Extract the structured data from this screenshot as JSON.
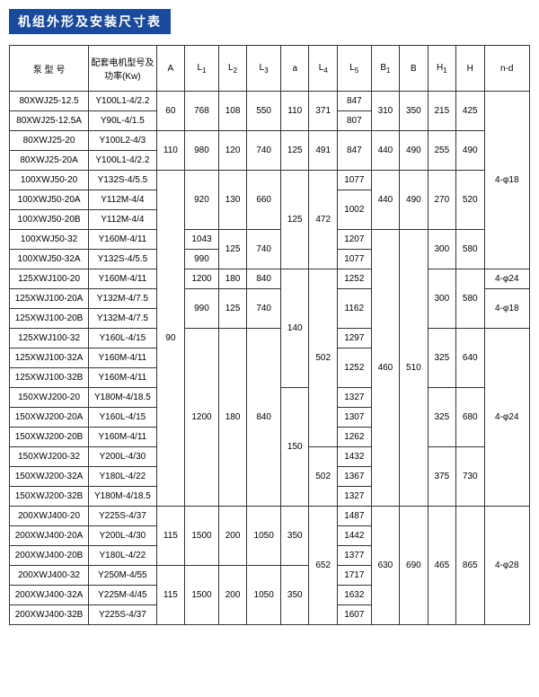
{
  "title": "机组外形及安装尺寸表",
  "title_style": {
    "bg": "#1a4a9c",
    "color": "#ffffff"
  },
  "header": {
    "pump": "泵 型 号",
    "motor": "配套电机型号及功率(Kw)",
    "A": "A",
    "L1": "L",
    "L1sub": "1",
    "L2": "L",
    "L2sub": "2",
    "L3": "L",
    "L3sub": "3",
    "a": "a",
    "L4": "L",
    "L4sub": "4",
    "L5": "L",
    "L5sub": "5",
    "B1": "B",
    "B1sub": "1",
    "B": "B",
    "H1": "H",
    "H1sub": "1",
    "H": "H",
    "nd": "n-d"
  },
  "r": {
    "p1": "80XWJ25-12.5",
    "m1": "Y100L1-4/2.2",
    "p2": "80XWJ25-12.5A",
    "m2": "Y90L-4/1.5",
    "p3": "80XWJ25-20",
    "m3": "Y100L2-4/3",
    "p4": "80XWJ25-20A",
    "m4": "Y100L1-4/2.2",
    "p5": "100XWJ50-20",
    "m5": "Y132S-4/5.5",
    "p6": "100XWJ50-20A",
    "m6": "Y112M-4/4",
    "p7": "100XWJ50-20B",
    "m7": "Y112M-4/4",
    "p8": "100XWJ50-32",
    "m8": "Y160M-4/11",
    "p9": "100XWJ50-32A",
    "m9": "Y132S-4/5.5",
    "p10": "125XWJ100-20",
    "m10": "Y160M-4/11",
    "p11": "125XWJ100-20A",
    "m11": "Y132M-4/7.5",
    "p12": "125XWJ100-20B",
    "m12": "Y132M-4/7.5",
    "p13": "125XWJ100-32",
    "m13": "Y160L-4/15",
    "p14": "125XWJ100-32A",
    "m14": "Y160M-4/11",
    "p15": "125XWJ100-32B",
    "m15": "Y160M-4/11",
    "p16": "150XWJ200-20",
    "m16": "Y180M-4/18.5",
    "p17": "150XWJ200-20A",
    "m17": "Y160L-4/15",
    "p18": "150XWJ200-20B",
    "m18": "Y160M-4/11",
    "p19": "150XWJ200-32",
    "m19": "Y200L-4/30",
    "p20": "150XWJ200-32A",
    "m20": "Y180L-4/22",
    "p21": "150XWJ200-32B",
    "m21": "Y180M-4/18.5",
    "p22": "200XWJ400-20",
    "m22": "Y225S-4/37",
    "p23": "200XWJ400-20A",
    "m23": "Y200L-4/30",
    "p24": "200XWJ400-20B",
    "m24": "Y180L-4/22",
    "p25": "200XWJ400-32",
    "m25": "Y250M-4/55",
    "p26": "200XWJ400-32A",
    "m26": "Y225M-4/45",
    "p27": "200XWJ400-32B",
    "m27": "Y225S-4/37"
  },
  "v": {
    "A_r1": "60",
    "L1_r1": "768",
    "L2_r1": "108",
    "L3_r1": "550",
    "a_r1": "110",
    "L4_r1": "371",
    "L5_r1": "847",
    "L5_r2": "807",
    "B1_r1": "310",
    "B_r1": "350",
    "H1_r1": "215",
    "H_r1": "425",
    "A_r3": "110",
    "L1_r3": "980",
    "L2_r3": "120",
    "L3_r3": "740",
    "a_r3": "125",
    "L4_r3": "491",
    "L5_r3": "847",
    "B1_r3": "440",
    "B_r3": "490",
    "H1_r3": "255",
    "H_r3": "490",
    "A_r5": "90",
    "L1_r5": "920",
    "L2_r5": "130",
    "L3_r5": "660",
    "a_r5": "125",
    "L4_r5": "472",
    "L5_r5": "1077",
    "L5_r6": "1002",
    "B1_r5": "440",
    "B_r5": "490",
    "H1_r5": "270",
    "H_r5": "520",
    "L1_r8": "1043",
    "L1_r9": "990",
    "L2_r8": "125",
    "L3_r8": "740",
    "L5_r8": "1207",
    "L5_r9": "1077",
    "H1_r8": "300",
    "H_r8": "580",
    "L1_r10": "1200",
    "L2_r10": "180",
    "L3_r10": "840",
    "a_r10": "140",
    "L5_r10": "1252",
    "H1_r10": "300",
    "H_r10": "580",
    "L1_r11": "990",
    "L2_r11": "125",
    "L3_r11": "740",
    "L5_r11": "1162",
    "L5_r13": "1297",
    "L5_r14": "1252",
    "L4_r13": "502",
    "B1_r8": "460",
    "B_r8": "510",
    "H1_r13": "325",
    "H_r13": "640",
    "L1_r16": "1200",
    "L2_r16": "180",
    "L3_r16": "840",
    "a_r16": "150",
    "L5_r16": "1327",
    "L5_r17": "1307",
    "L5_r18": "1262",
    "H1_r16": "325",
    "H_r16": "680",
    "L5_r19": "1432",
    "L5_r20": "1367",
    "L5_r21": "1327",
    "H1_r19": "375",
    "H_r19": "730",
    "A_r22": "115",
    "L1_r22": "1500",
    "L2_r22": "200",
    "L3_r22": "1050",
    "a_r22": "350",
    "L4_r22": "652",
    "L5_r22": "1487",
    "L5_r23": "1442",
    "L5_r24": "1377",
    "B1_r22": "630",
    "B_r22": "690",
    "H1_r22": "465",
    "H_r22": "865",
    "A_r25": "115",
    "L1_r25": "1500",
    "L2_r25": "200",
    "L3_r25": "1050",
    "a_r25": "350",
    "L5_r25": "1717",
    "L5_r26": "1632",
    "L5_r27": "1607",
    "nd_r1": "4-φ18",
    "nd_r10": "4-φ24",
    "nd_r11": "4-φ18",
    "nd_r13": "4-φ24",
    "nd_r22": "4-φ28"
  }
}
